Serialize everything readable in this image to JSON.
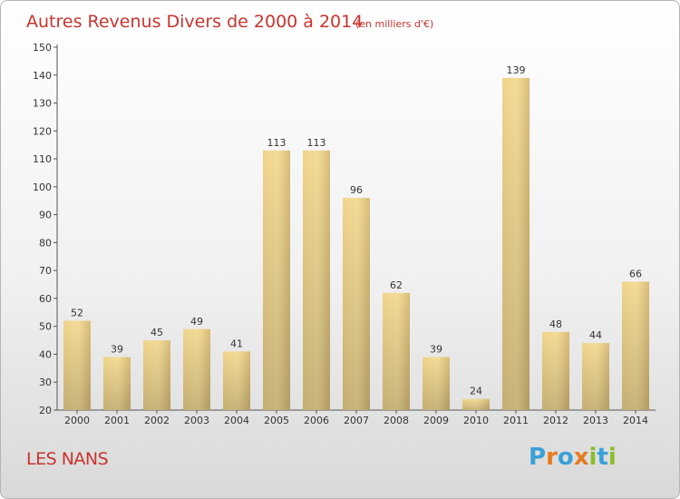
{
  "header": {
    "title": "Autres Revenus Divers de 2000 à 2014",
    "subtitle": "(en milliers d'€)"
  },
  "footer": {
    "commune": "LES NANS",
    "brand": "Proxiti"
  },
  "colors": {
    "title": "#c8342e",
    "bar_light": "#f3dc98",
    "bar_dark": "#c8ab68"
  },
  "chart_data": {
    "type": "bar",
    "title": "Autres Revenus Divers de 2000 à 2014",
    "subtitle": "(en milliers d'€)",
    "categories": [
      "2000",
      "2001",
      "2002",
      "2003",
      "2004",
      "2005",
      "2006",
      "2007",
      "2008",
      "2009",
      "2010",
      "2011",
      "2012",
      "2013",
      "2014"
    ],
    "values": [
      52,
      39,
      45,
      49,
      41,
      113,
      113,
      96,
      62,
      39,
      24,
      139,
      48,
      44,
      66
    ],
    "ylim": [
      20,
      150
    ],
    "yticks": [
      20,
      30,
      40,
      50,
      60,
      70,
      80,
      90,
      100,
      110,
      120,
      130,
      140,
      150
    ],
    "xlabel": "",
    "ylabel": "",
    "grid": false,
    "data_labels": true
  }
}
